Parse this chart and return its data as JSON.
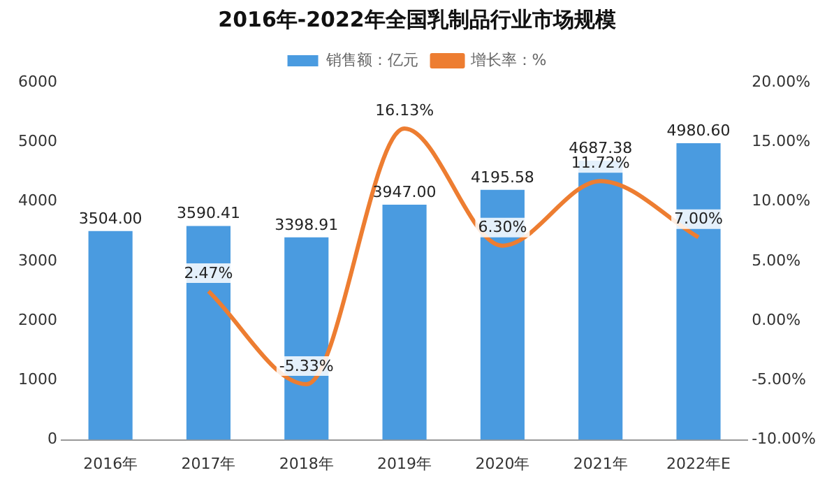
{
  "chart_data": {
    "type": "bar",
    "title": "2016年-2022年全国乳制品行业市场规模",
    "categories": [
      "2016年",
      "2017年",
      "2018年",
      "2019年",
      "2020年",
      "2021年",
      "2022年E"
    ],
    "series": [
      {
        "name": "销售额：亿元",
        "color": "#4a9be0",
        "values": [
          3504.0,
          3590.41,
          3398.91,
          3947.0,
          4195.58,
          4687.38,
          4980.6
        ],
        "value_labels": [
          "3504.00",
          "3590.41",
          "3398.91",
          "3947.00",
          "4195.58",
          "4687.38",
          "4980.60"
        ]
      },
      {
        "name": "增长率：%",
        "type": "line",
        "axis": "y2",
        "color": "#ed7d31",
        "marker": "none",
        "values": [
          null,
          2.47,
          -5.33,
          16.13,
          6.3,
          11.72,
          7.0
        ],
        "value_labels": [
          null,
          "2.47%",
          "-5.33%",
          "16.13%",
          "6.30%",
          "11.72%",
          "7.00%"
        ]
      }
    ],
    "ylim": [
      0,
      6000
    ],
    "yticks": [
      0,
      1000,
      2000,
      3000,
      4000,
      5000,
      6000
    ],
    "y2lim": [
      -10,
      20
    ],
    "y2ticks": [
      {
        "value": -10,
        "label": "-10.00%"
      },
      {
        "value": -5,
        "label": "-5.00%"
      },
      {
        "value": 0,
        "label": "0.00%"
      },
      {
        "value": 5,
        "label": "5.00%"
      },
      {
        "value": 10,
        "label": "10.00%"
      },
      {
        "value": 15,
        "label": "15.00%"
      },
      {
        "value": 20,
        "label": "20.00%"
      }
    ],
    "grid": false,
    "legend": "top"
  }
}
